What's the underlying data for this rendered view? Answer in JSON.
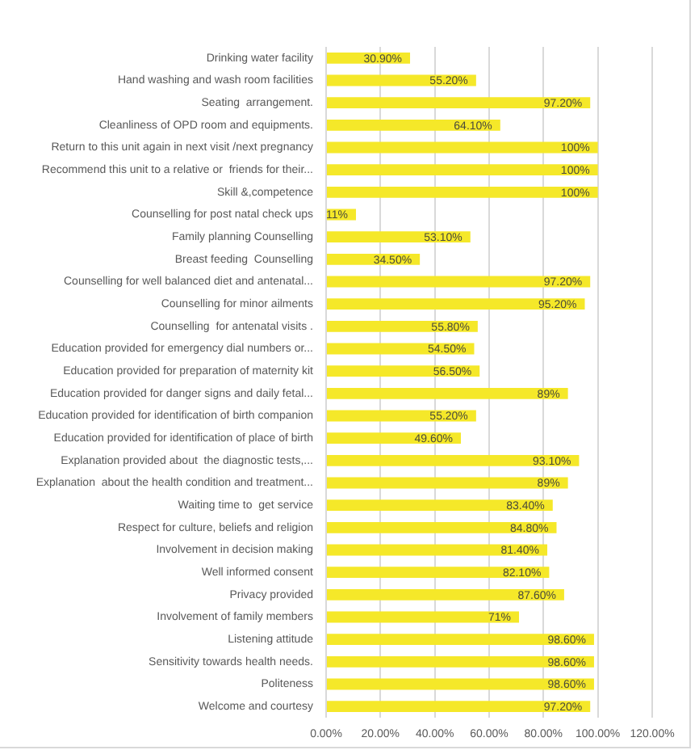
{
  "chart_data": {
    "type": "bar",
    "orientation": "horizontal",
    "categories": [
      "Drinking water facility",
      "Hand washing and wash room facilities",
      "Seating  arrangement.",
      "Cleanliness of OPD room and equipments.",
      "Return to this unit again in next visit /next pregnancy",
      "Recommend this unit to a relative or  friends for their...",
      "Skill &,competence",
      "Counselling for post natal check ups",
      "Family planning Counselling",
      "Breast feeding  Counselling",
      "Counselling for well balanced diet and antenatal...",
      "Counselling for minor ailments",
      "Counselling  for antenatal visits .",
      "Education provided for emergency dial numbers or...",
      "Education provided for preparation of maternity kit",
      "Education provided for danger signs and daily fetal...",
      "Education provided for identification of birth companion",
      "Education provided for identification of place of birth",
      "Explanation provided about  the diagnostic tests,...",
      "Explanation  about the health condition and treatment...",
      "Waiting time to  get service",
      "Respect for culture, beliefs and religion",
      "Involvement in decision making",
      "Well informed consent",
      "Privacy provided",
      "Involvement of family members",
      "Listening attitude",
      "Sensitivity towards health needs.",
      "Politeness",
      "Welcome and courtesy"
    ],
    "values": [
      30.9,
      55.2,
      97.2,
      64.1,
      100,
      100,
      100,
      11,
      53.1,
      34.5,
      97.2,
      95.2,
      55.8,
      54.5,
      56.5,
      89,
      55.2,
      49.6,
      93.1,
      89,
      83.4,
      84.8,
      81.4,
      82.1,
      87.6,
      71,
      98.6,
      98.6,
      98.6,
      97.2
    ],
    "value_labels": [
      "30.90%",
      "55.20%",
      "97.20%",
      "64.10%",
      "100%",
      "100%",
      "100%",
      "11%",
      "53.10%",
      "34.50%",
      "97.20%",
      "95.20%",
      "55.80%",
      "54.50%",
      "56.50%",
      "89%",
      "55.20%",
      "49.60%",
      "93.10%",
      "89%",
      "83.40%",
      "84.80%",
      "81.40%",
      "82.10%",
      "87.60%",
      "71%",
      "98.60%",
      "98.60%",
      "98.60%",
      "97.20%"
    ],
    "color": "#f5e829",
    "xlim": [
      0,
      120
    ],
    "xticks": [
      {
        "value": 0,
        "label": "0.00%"
      },
      {
        "value": 20,
        "label": "20.00%"
      },
      {
        "value": 40,
        "label": "40.00%"
      },
      {
        "value": 60,
        "label": "60.00%"
      },
      {
        "value": 80,
        "label": "80.00%"
      },
      {
        "value": 100,
        "label": "100.00%"
      },
      {
        "value": 120,
        "label": "120.00%"
      }
    ],
    "grid": "x"
  }
}
